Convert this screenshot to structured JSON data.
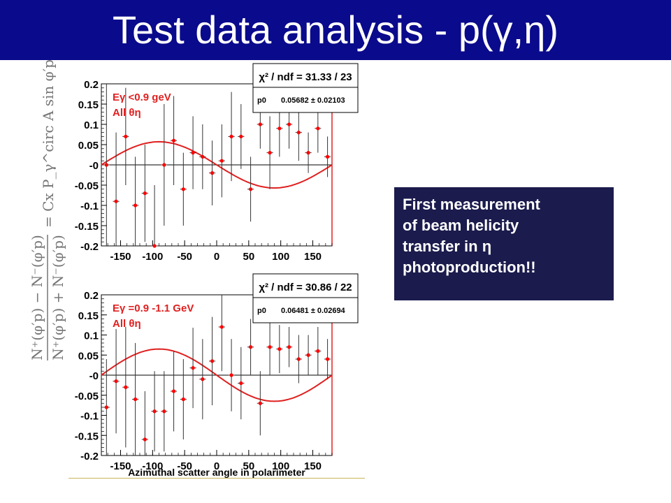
{
  "slide": {
    "title": "Test data analysis - p(γ,η)",
    "colors": {
      "title_bar": "#0a0a8c",
      "callout_bg": "#1b1b4d",
      "marker": "#ff0000",
      "fit_line": "#e02020"
    },
    "callout_lines": [
      "First measurement",
      "of beam  helicity",
      "transfer in η",
      "photoproduction!!"
    ],
    "xlabel": "Azimuthal scatter angle in polarimeter"
  },
  "chart_data": [
    {
      "type": "scatter",
      "annotation_lines": [
        "Eγ <0.9 geV",
        "All θη"
      ],
      "stats": {
        "chi2_label": "χ² / ndf = 31.33 / 23",
        "param_name": "p0",
        "param_value": "0.05682 ± 0.02103"
      },
      "xlim": [
        -180,
        180
      ],
      "ylim": [
        -0.2,
        0.2
      ],
      "xticks": [
        "-150",
        "-100",
        "-50",
        "0",
        "50",
        "100",
        "150"
      ],
      "yticks": [
        "0.2",
        "0.15",
        "0.1",
        "0.05",
        "-0",
        "-0.05",
        "-0.1",
        "-0.15",
        "-0.2"
      ],
      "fit_amplitude": 0.057,
      "points": [
        {
          "x": -172,
          "y": 0.0,
          "err": 0.23
        },
        {
          "x": -157,
          "y": -0.09,
          "err": 0.17
        },
        {
          "x": -142,
          "y": 0.07,
          "err": 0.12
        },
        {
          "x": -127,
          "y": -0.1,
          "err": 0.12
        },
        {
          "x": -112,
          "y": -0.07,
          "err": 0.12
        },
        {
          "x": -97,
          "y": -0.2,
          "err": 0.15
        },
        {
          "x": -82,
          "y": 0.0,
          "err": 0.15
        },
        {
          "x": -67,
          "y": 0.06,
          "err": 0.11
        },
        {
          "x": -52,
          "y": -0.06,
          "err": 0.09
        },
        {
          "x": -37,
          "y": 0.03,
          "err": 0.09
        },
        {
          "x": -22,
          "y": 0.02,
          "err": 0.08
        },
        {
          "x": -7,
          "y": -0.02,
          "err": 0.08
        },
        {
          "x": 8,
          "y": 0.01,
          "err": 0.09
        },
        {
          "x": 23,
          "y": 0.07,
          "err": 0.11
        },
        {
          "x": 38,
          "y": 0.07,
          "err": 0.08
        },
        {
          "x": 53,
          "y": -0.06,
          "err": 0.08
        },
        {
          "x": 68,
          "y": 0.1,
          "err": 0.06
        },
        {
          "x": 83,
          "y": 0.03,
          "err": 0.09
        },
        {
          "x": 98,
          "y": 0.09,
          "err": 0.07
        },
        {
          "x": 113,
          "y": 0.1,
          "err": 0.06
        },
        {
          "x": 128,
          "y": 0.08,
          "err": 0.07
        },
        {
          "x": 143,
          "y": 0.03,
          "err": 0.05
        },
        {
          "x": 158,
          "y": 0.09,
          "err": 0.06
        },
        {
          "x": 173,
          "y": 0.02,
          "err": 0.05
        }
      ]
    },
    {
      "type": "scatter",
      "annotation_lines": [
        "Eγ =0.9 -1.1 GeV",
        "All θη"
      ],
      "stats": {
        "chi2_label": "χ² / ndf = 30.86 / 22",
        "param_name": "p0",
        "param_value": "0.06481 ± 0.02694"
      },
      "xlim": [
        -180,
        180
      ],
      "ylim": [
        -0.2,
        0.2
      ],
      "xticks": [
        "-150",
        "-100",
        "-50",
        "0",
        "50",
        "100",
        "150"
      ],
      "yticks": [
        "0.2",
        "0.15",
        "0.1",
        "0.05",
        "-0",
        "-0.05",
        "-0.1",
        "-0.15",
        "-0.2"
      ],
      "fit_amplitude": 0.065,
      "points": [
        {
          "x": -172,
          "y": -0.08,
          "err": 0.12
        },
        {
          "x": -157,
          "y": -0.015,
          "err": 0.13
        },
        {
          "x": -142,
          "y": -0.03,
          "err": 0.15
        },
        {
          "x": -127,
          "y": -0.06,
          "err": 0.14
        },
        {
          "x": -112,
          "y": -0.16,
          "err": 0.12
        },
        {
          "x": -97,
          "y": -0.09,
          "err": 0.1
        },
        {
          "x": -82,
          "y": -0.09,
          "err": 0.1
        },
        {
          "x": -67,
          "y": -0.04,
          "err": 0.1
        },
        {
          "x": -52,
          "y": -0.06,
          "err": 0.1
        },
        {
          "x": -37,
          "y": 0.018,
          "err": 0.1
        },
        {
          "x": -22,
          "y": -0.01,
          "err": 0.1
        },
        {
          "x": -7,
          "y": 0.035,
          "err": 0.11
        },
        {
          "x": 8,
          "y": 0.12,
          "err": 0.11
        },
        {
          "x": 23,
          "y": 0.0,
          "err": 0.09
        },
        {
          "x": 38,
          "y": -0.02,
          "err": 0.09
        },
        {
          "x": 53,
          "y": 0.07,
          "err": 0.07
        },
        {
          "x": 68,
          "y": -0.07,
          "err": 0.08
        },
        {
          "x": 83,
          "y": 0.07,
          "err": 0.07
        },
        {
          "x": 98,
          "y": 0.065,
          "err": 0.06
        },
        {
          "x": 113,
          "y": 0.07,
          "err": 0.05
        },
        {
          "x": 128,
          "y": 0.04,
          "err": 0.06
        },
        {
          "x": 143,
          "y": 0.05,
          "err": 0.05
        },
        {
          "x": 158,
          "y": 0.06,
          "err": 0.06
        },
        {
          "x": 173,
          "y": 0.04,
          "err": 0.05
        }
      ]
    }
  ],
  "formula": {
    "lhs_num": "N⁺(φ′p) − N⁻(φ′p)",
    "lhs_den": "N⁺(φ′p) + N⁻(φ′p)",
    "rhs": "= Cx P_γ^circ A sin φ′p"
  }
}
